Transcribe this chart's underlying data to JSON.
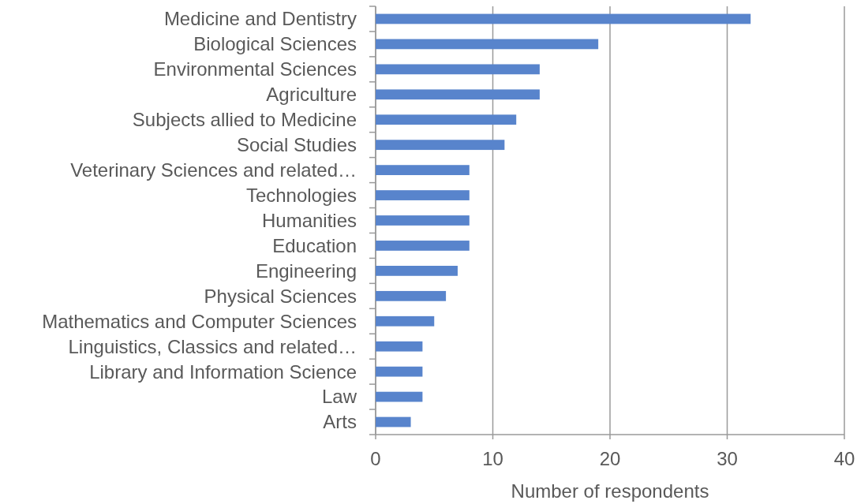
{
  "chart_data": {
    "type": "bar",
    "orientation": "horizontal",
    "categories": [
      "Medicine and Dentistry",
      "Biological Sciences",
      "Environmental Sciences",
      "Agriculture",
      "Subjects allied to Medicine",
      "Social Studies",
      "Veterinary Sciences and related…",
      "Technologies",
      "Humanities",
      "Education",
      "Engineering",
      "Physical Sciences",
      "Mathematics and Computer Sciences",
      "Linguistics, Classics and related…",
      "Library and Information Science",
      "Law",
      "Arts"
    ],
    "values": [
      32,
      19,
      14,
      14,
      12,
      11,
      8,
      8,
      8,
      8,
      7,
      6,
      5,
      4,
      4,
      4,
      3
    ],
    "color": "#5884cc",
    "xlabel": "Number of respondents",
    "xlim": [
      0,
      40
    ],
    "xticks": [
      0,
      10,
      20,
      30,
      40
    ],
    "grid": "x"
  }
}
